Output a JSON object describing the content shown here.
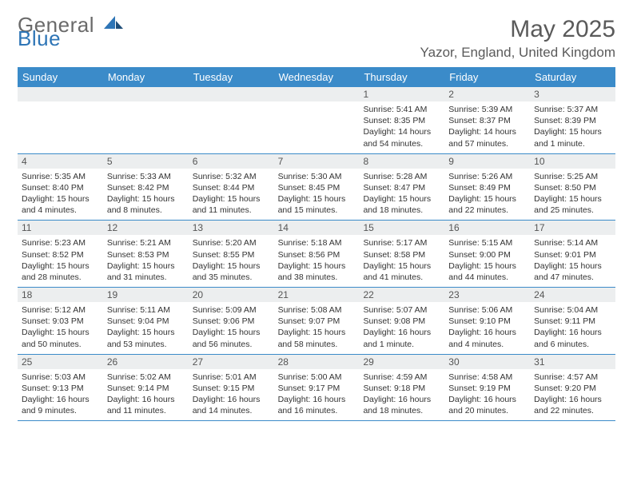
{
  "brand": {
    "text1": "General",
    "text2": "Blue"
  },
  "title": "May 2025",
  "location": "Yazor, England, United Kingdom",
  "colors": {
    "header_bg": "#3b8bc9",
    "header_text": "#ffffff",
    "daynum_bg": "#eceeef",
    "rule": "#3b8bc9",
    "text": "#333333",
    "title_text": "#5a5a5a"
  },
  "weekdays": [
    "Sunday",
    "Monday",
    "Tuesday",
    "Wednesday",
    "Thursday",
    "Friday",
    "Saturday"
  ],
  "weeks": [
    [
      {
        "n": "",
        "sunrise": "",
        "sunset": "",
        "daylight": ""
      },
      {
        "n": "",
        "sunrise": "",
        "sunset": "",
        "daylight": ""
      },
      {
        "n": "",
        "sunrise": "",
        "sunset": "",
        "daylight": ""
      },
      {
        "n": "",
        "sunrise": "",
        "sunset": "",
        "daylight": ""
      },
      {
        "n": "1",
        "sunrise": "Sunrise: 5:41 AM",
        "sunset": "Sunset: 8:35 PM",
        "daylight": "Daylight: 14 hours and 54 minutes."
      },
      {
        "n": "2",
        "sunrise": "Sunrise: 5:39 AM",
        "sunset": "Sunset: 8:37 PM",
        "daylight": "Daylight: 14 hours and 57 minutes."
      },
      {
        "n": "3",
        "sunrise": "Sunrise: 5:37 AM",
        "sunset": "Sunset: 8:39 PM",
        "daylight": "Daylight: 15 hours and 1 minute."
      }
    ],
    [
      {
        "n": "4",
        "sunrise": "Sunrise: 5:35 AM",
        "sunset": "Sunset: 8:40 PM",
        "daylight": "Daylight: 15 hours and 4 minutes."
      },
      {
        "n": "5",
        "sunrise": "Sunrise: 5:33 AM",
        "sunset": "Sunset: 8:42 PM",
        "daylight": "Daylight: 15 hours and 8 minutes."
      },
      {
        "n": "6",
        "sunrise": "Sunrise: 5:32 AM",
        "sunset": "Sunset: 8:44 PM",
        "daylight": "Daylight: 15 hours and 11 minutes."
      },
      {
        "n": "7",
        "sunrise": "Sunrise: 5:30 AM",
        "sunset": "Sunset: 8:45 PM",
        "daylight": "Daylight: 15 hours and 15 minutes."
      },
      {
        "n": "8",
        "sunrise": "Sunrise: 5:28 AM",
        "sunset": "Sunset: 8:47 PM",
        "daylight": "Daylight: 15 hours and 18 minutes."
      },
      {
        "n": "9",
        "sunrise": "Sunrise: 5:26 AM",
        "sunset": "Sunset: 8:49 PM",
        "daylight": "Daylight: 15 hours and 22 minutes."
      },
      {
        "n": "10",
        "sunrise": "Sunrise: 5:25 AM",
        "sunset": "Sunset: 8:50 PM",
        "daylight": "Daylight: 15 hours and 25 minutes."
      }
    ],
    [
      {
        "n": "11",
        "sunrise": "Sunrise: 5:23 AM",
        "sunset": "Sunset: 8:52 PM",
        "daylight": "Daylight: 15 hours and 28 minutes."
      },
      {
        "n": "12",
        "sunrise": "Sunrise: 5:21 AM",
        "sunset": "Sunset: 8:53 PM",
        "daylight": "Daylight: 15 hours and 31 minutes."
      },
      {
        "n": "13",
        "sunrise": "Sunrise: 5:20 AM",
        "sunset": "Sunset: 8:55 PM",
        "daylight": "Daylight: 15 hours and 35 minutes."
      },
      {
        "n": "14",
        "sunrise": "Sunrise: 5:18 AM",
        "sunset": "Sunset: 8:56 PM",
        "daylight": "Daylight: 15 hours and 38 minutes."
      },
      {
        "n": "15",
        "sunrise": "Sunrise: 5:17 AM",
        "sunset": "Sunset: 8:58 PM",
        "daylight": "Daylight: 15 hours and 41 minutes."
      },
      {
        "n": "16",
        "sunrise": "Sunrise: 5:15 AM",
        "sunset": "Sunset: 9:00 PM",
        "daylight": "Daylight: 15 hours and 44 minutes."
      },
      {
        "n": "17",
        "sunrise": "Sunrise: 5:14 AM",
        "sunset": "Sunset: 9:01 PM",
        "daylight": "Daylight: 15 hours and 47 minutes."
      }
    ],
    [
      {
        "n": "18",
        "sunrise": "Sunrise: 5:12 AM",
        "sunset": "Sunset: 9:03 PM",
        "daylight": "Daylight: 15 hours and 50 minutes."
      },
      {
        "n": "19",
        "sunrise": "Sunrise: 5:11 AM",
        "sunset": "Sunset: 9:04 PM",
        "daylight": "Daylight: 15 hours and 53 minutes."
      },
      {
        "n": "20",
        "sunrise": "Sunrise: 5:09 AM",
        "sunset": "Sunset: 9:06 PM",
        "daylight": "Daylight: 15 hours and 56 minutes."
      },
      {
        "n": "21",
        "sunrise": "Sunrise: 5:08 AM",
        "sunset": "Sunset: 9:07 PM",
        "daylight": "Daylight: 15 hours and 58 minutes."
      },
      {
        "n": "22",
        "sunrise": "Sunrise: 5:07 AM",
        "sunset": "Sunset: 9:08 PM",
        "daylight": "Daylight: 16 hours and 1 minute."
      },
      {
        "n": "23",
        "sunrise": "Sunrise: 5:06 AM",
        "sunset": "Sunset: 9:10 PM",
        "daylight": "Daylight: 16 hours and 4 minutes."
      },
      {
        "n": "24",
        "sunrise": "Sunrise: 5:04 AM",
        "sunset": "Sunset: 9:11 PM",
        "daylight": "Daylight: 16 hours and 6 minutes."
      }
    ],
    [
      {
        "n": "25",
        "sunrise": "Sunrise: 5:03 AM",
        "sunset": "Sunset: 9:13 PM",
        "daylight": "Daylight: 16 hours and 9 minutes."
      },
      {
        "n": "26",
        "sunrise": "Sunrise: 5:02 AM",
        "sunset": "Sunset: 9:14 PM",
        "daylight": "Daylight: 16 hours and 11 minutes."
      },
      {
        "n": "27",
        "sunrise": "Sunrise: 5:01 AM",
        "sunset": "Sunset: 9:15 PM",
        "daylight": "Daylight: 16 hours and 14 minutes."
      },
      {
        "n": "28",
        "sunrise": "Sunrise: 5:00 AM",
        "sunset": "Sunset: 9:17 PM",
        "daylight": "Daylight: 16 hours and 16 minutes."
      },
      {
        "n": "29",
        "sunrise": "Sunrise: 4:59 AM",
        "sunset": "Sunset: 9:18 PM",
        "daylight": "Daylight: 16 hours and 18 minutes."
      },
      {
        "n": "30",
        "sunrise": "Sunrise: 4:58 AM",
        "sunset": "Sunset: 9:19 PM",
        "daylight": "Daylight: 16 hours and 20 minutes."
      },
      {
        "n": "31",
        "sunrise": "Sunrise: 4:57 AM",
        "sunset": "Sunset: 9:20 PM",
        "daylight": "Daylight: 16 hours and 22 minutes."
      }
    ]
  ]
}
